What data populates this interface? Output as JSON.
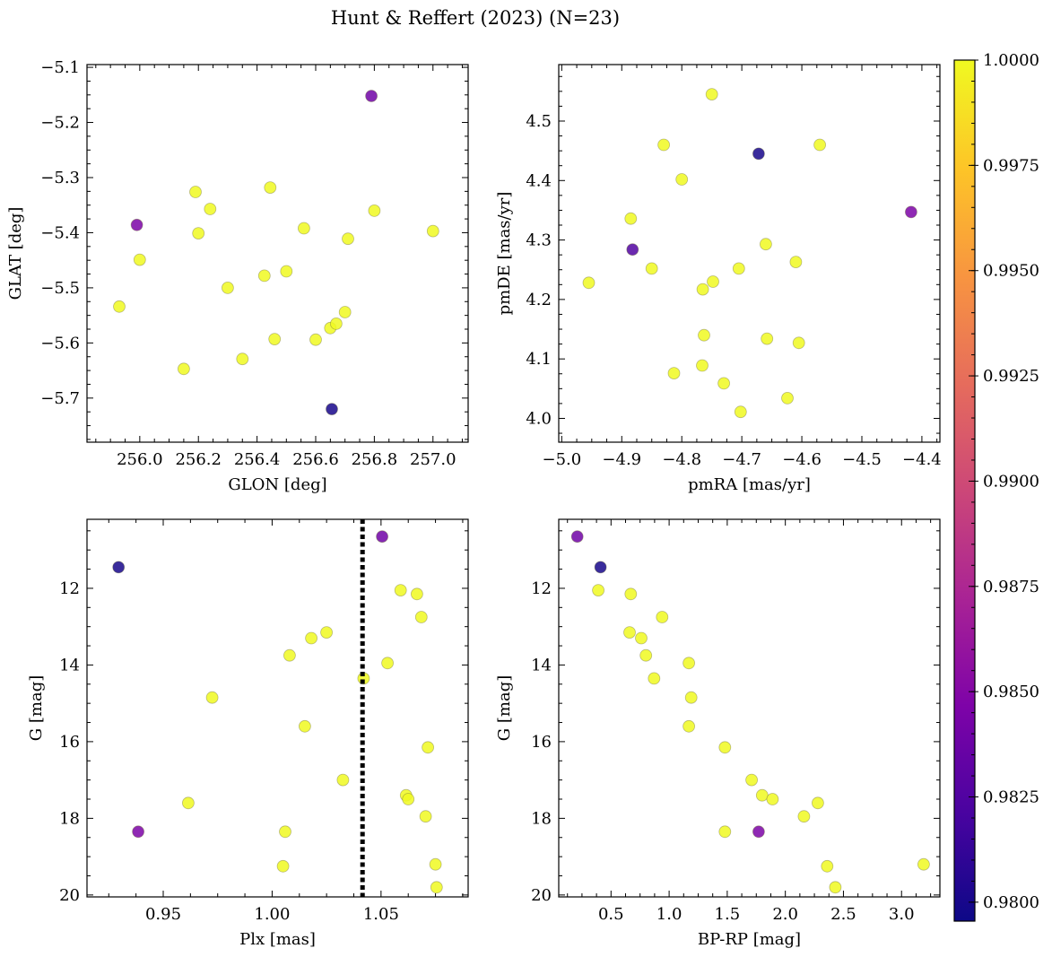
{
  "figure": {
    "title": "Hunt & Reffert (2023) (N=23)"
  },
  "colorbar": {
    "cmap": "plasma",
    "range": [
      0.97955,
      1.0
    ],
    "ticks": [
      0.98,
      0.9825,
      0.985,
      0.9875,
      0.99,
      0.9925,
      0.995,
      0.9975,
      1.0
    ],
    "tick_labels": [
      "0.9800",
      "0.9825",
      "0.9850",
      "0.9875",
      "0.9900",
      "0.9925",
      "0.9950",
      "0.9975",
      "1.0000"
    ]
  },
  "chart_data": [
    {
      "type": "scatter",
      "panel": "top-left",
      "xlabel": "GLON [deg]",
      "ylabel": "GLAT [deg]",
      "xlim": [
        255.82,
        257.12
      ],
      "ylim": [
        -5.78,
        -5.095
      ],
      "yinvert": false,
      "xticks": [
        256.0,
        256.2,
        256.4,
        256.6,
        256.8,
        257.0
      ],
      "xtick_labels": [
        "256.0",
        "256.2",
        "256.4",
        "256.6",
        "256.8",
        "257.0"
      ],
      "yticks": [
        -5.7,
        -5.6,
        -5.5,
        -5.4,
        -5.3,
        -5.2,
        -5.1
      ],
      "ytick_labels": [
        "−5.7",
        "−5.6",
        "−5.5",
        "−5.4",
        "−5.3",
        "−5.2",
        "−5.1"
      ],
      "points": [
        {
          "x": 256.79,
          "y": -5.152,
          "c": 0.984
        },
        {
          "x": 255.99,
          "y": -5.386,
          "c": 0.9845
        },
        {
          "x": 256.655,
          "y": -5.72,
          "c": 0.98
        },
        {
          "x": 256.0,
          "y": -5.449,
          "c": 1.0
        },
        {
          "x": 255.93,
          "y": -5.534,
          "c": 1.0
        },
        {
          "x": 256.19,
          "y": -5.326,
          "c": 1.0
        },
        {
          "x": 256.24,
          "y": -5.357,
          "c": 1.0
        },
        {
          "x": 256.2,
          "y": -5.401,
          "c": 1.0
        },
        {
          "x": 256.3,
          "y": -5.5,
          "c": 1.0
        },
        {
          "x": 256.15,
          "y": -5.647,
          "c": 1.0
        },
        {
          "x": 256.35,
          "y": -5.629,
          "c": 1.0
        },
        {
          "x": 256.445,
          "y": -5.318,
          "c": 1.0
        },
        {
          "x": 256.425,
          "y": -5.478,
          "c": 1.0
        },
        {
          "x": 256.5,
          "y": -5.47,
          "c": 1.0
        },
        {
          "x": 256.46,
          "y": -5.593,
          "c": 1.0
        },
        {
          "x": 256.56,
          "y": -5.392,
          "c": 1.0
        },
        {
          "x": 256.6,
          "y": -5.594,
          "c": 1.0
        },
        {
          "x": 256.65,
          "y": -5.573,
          "c": 1.0
        },
        {
          "x": 256.67,
          "y": -5.565,
          "c": 1.0
        },
        {
          "x": 256.7,
          "y": -5.544,
          "c": 1.0
        },
        {
          "x": 256.71,
          "y": -5.411,
          "c": 1.0
        },
        {
          "x": 256.8,
          "y": -5.36,
          "c": 1.0
        },
        {
          "x": 257.0,
          "y": -5.397,
          "c": 1.0
        }
      ]
    },
    {
      "type": "scatter",
      "panel": "top-right",
      "xlabel": "pmRA [mas/yr]",
      "ylabel": "pmDE [mas/yr]",
      "xlim": [
        -5.005,
        -4.37
      ],
      "ylim": [
        3.96,
        4.595
      ],
      "yinvert": false,
      "xticks": [
        -5.0,
        -4.9,
        -4.8,
        -4.7,
        -4.6,
        -4.5,
        -4.4
      ],
      "xtick_labels": [
        "−5.0",
        "−4.9",
        "−4.8",
        "−4.7",
        "−4.6",
        "−4.5",
        "−4.4"
      ],
      "yticks": [
        4.0,
        4.1,
        4.2,
        4.3,
        4.4,
        4.5
      ],
      "ytick_labels": [
        "4.0",
        "4.1",
        "4.2",
        "4.3",
        "4.4",
        "4.5"
      ],
      "points": [
        {
          "x": -4.672,
          "y": 4.445,
          "c": 0.98
        },
        {
          "x": -4.882,
          "y": 4.284,
          "c": 0.9825
        },
        {
          "x": -4.418,
          "y": 4.347,
          "c": 0.9845
        },
        {
          "x": -4.75,
          "y": 4.545,
          "c": 1.0
        },
        {
          "x": -4.83,
          "y": 4.46,
          "c": 1.0
        },
        {
          "x": -4.57,
          "y": 4.46,
          "c": 1.0
        },
        {
          "x": -4.8,
          "y": 4.402,
          "c": 1.0
        },
        {
          "x": -4.885,
          "y": 4.336,
          "c": 1.0
        },
        {
          "x": -4.66,
          "y": 4.293,
          "c": 1.0
        },
        {
          "x": -4.85,
          "y": 4.252,
          "c": 1.0
        },
        {
          "x": -4.705,
          "y": 4.252,
          "c": 1.0
        },
        {
          "x": -4.61,
          "y": 4.263,
          "c": 1.0
        },
        {
          "x": -4.955,
          "y": 4.228,
          "c": 1.0
        },
        {
          "x": -4.748,
          "y": 4.23,
          "c": 1.0
        },
        {
          "x": -4.765,
          "y": 4.217,
          "c": 1.0
        },
        {
          "x": -4.763,
          "y": 4.14,
          "c": 1.0
        },
        {
          "x": -4.658,
          "y": 4.134,
          "c": 1.0
        },
        {
          "x": -4.605,
          "y": 4.127,
          "c": 1.0
        },
        {
          "x": -4.766,
          "y": 4.089,
          "c": 1.0
        },
        {
          "x": -4.813,
          "y": 4.076,
          "c": 1.0
        },
        {
          "x": -4.73,
          "y": 4.059,
          "c": 1.0
        },
        {
          "x": -4.624,
          "y": 4.034,
          "c": 1.0
        },
        {
          "x": -4.702,
          "y": 4.011,
          "c": 1.0
        }
      ]
    },
    {
      "type": "scatter",
      "panel": "bottom-left",
      "xlabel": "Plx [mas]",
      "ylabel": "G [mag]",
      "xlim": [
        0.915,
        1.09
      ],
      "ylim": [
        20.05,
        10.2
      ],
      "yinvert": true,
      "vline": {
        "x": 1.0415,
        "style": "dotted"
      },
      "xticks": [
        0.95,
        1.0,
        1.05
      ],
      "xtick_labels": [
        "0.95",
        "1.00",
        "1.05"
      ],
      "yticks": [
        12,
        14,
        16,
        18,
        20
      ],
      "ytick_labels": [
        "12",
        "14",
        "16",
        "18",
        "20"
      ],
      "points": [
        {
          "x": 0.9295,
          "y": 11.45,
          "c": 0.98
        },
        {
          "x": 1.0505,
          "y": 10.65,
          "c": 0.984
        },
        {
          "x": 0.9385,
          "y": 18.35,
          "c": 0.9845
        },
        {
          "x": 1.059,
          "y": 12.05,
          "c": 1.0
        },
        {
          "x": 1.0665,
          "y": 12.15,
          "c": 1.0
        },
        {
          "x": 1.0685,
          "y": 12.75,
          "c": 1.0
        },
        {
          "x": 1.025,
          "y": 13.15,
          "c": 1.0
        },
        {
          "x": 1.018,
          "y": 13.3,
          "c": 1.0
        },
        {
          "x": 1.008,
          "y": 13.75,
          "c": 1.0
        },
        {
          "x": 1.053,
          "y": 13.95,
          "c": 1.0
        },
        {
          "x": 1.042,
          "y": 14.35,
          "c": 1.0
        },
        {
          "x": 0.9725,
          "y": 14.85,
          "c": 1.0
        },
        {
          "x": 1.015,
          "y": 15.6,
          "c": 1.0
        },
        {
          "x": 1.0715,
          "y": 16.15,
          "c": 1.0
        },
        {
          "x": 1.0325,
          "y": 17.0,
          "c": 1.0
        },
        {
          "x": 1.0615,
          "y": 17.4,
          "c": 1.0
        },
        {
          "x": 1.0625,
          "y": 17.5,
          "c": 1.0
        },
        {
          "x": 0.9615,
          "y": 17.6,
          "c": 1.0
        },
        {
          "x": 1.0705,
          "y": 17.95,
          "c": 1.0
        },
        {
          "x": 1.006,
          "y": 18.35,
          "c": 1.0
        },
        {
          "x": 1.005,
          "y": 19.25,
          "c": 1.0
        },
        {
          "x": 1.075,
          "y": 19.2,
          "c": 1.0
        },
        {
          "x": 1.0755,
          "y": 19.8,
          "c": 1.0
        }
      ]
    },
    {
      "type": "scatter",
      "panel": "bottom-right",
      "xlabel": "BP-RP [mag]",
      "ylabel": "G [mag]",
      "xlim": [
        0.05,
        3.33
      ],
      "ylim": [
        20.05,
        10.2
      ],
      "yinvert": true,
      "xticks": [
        0.5,
        1.0,
        1.5,
        2.0,
        2.5,
        3.0
      ],
      "xtick_labels": [
        "0.5",
        "1.0",
        "1.5",
        "2.0",
        "2.5",
        "3.0"
      ],
      "yticks": [
        12,
        14,
        16,
        18,
        20
      ],
      "ytick_labels": [
        "12",
        "14",
        "16",
        "18",
        "20"
      ],
      "points": [
        {
          "x": 0.21,
          "y": 10.65,
          "c": 0.984
        },
        {
          "x": 0.41,
          "y": 11.45,
          "c": 0.98
        },
        {
          "x": 1.77,
          "y": 18.35,
          "c": 0.9845
        },
        {
          "x": 0.39,
          "y": 12.05,
          "c": 1.0
        },
        {
          "x": 0.67,
          "y": 12.15,
          "c": 1.0
        },
        {
          "x": 0.94,
          "y": 12.75,
          "c": 1.0
        },
        {
          "x": 0.66,
          "y": 13.15,
          "c": 1.0
        },
        {
          "x": 0.76,
          "y": 13.3,
          "c": 1.0
        },
        {
          "x": 0.8,
          "y": 13.75,
          "c": 1.0
        },
        {
          "x": 1.17,
          "y": 13.95,
          "c": 1.0
        },
        {
          "x": 0.87,
          "y": 14.35,
          "c": 1.0
        },
        {
          "x": 1.19,
          "y": 14.85,
          "c": 1.0
        },
        {
          "x": 1.17,
          "y": 15.6,
          "c": 1.0
        },
        {
          "x": 1.48,
          "y": 16.15,
          "c": 1.0
        },
        {
          "x": 1.71,
          "y": 17.0,
          "c": 1.0
        },
        {
          "x": 1.8,
          "y": 17.4,
          "c": 1.0
        },
        {
          "x": 1.89,
          "y": 17.5,
          "c": 1.0
        },
        {
          "x": 2.28,
          "y": 17.6,
          "c": 1.0
        },
        {
          "x": 2.16,
          "y": 17.95,
          "c": 1.0
        },
        {
          "x": 1.48,
          "y": 18.35,
          "c": 1.0
        },
        {
          "x": 2.36,
          "y": 19.25,
          "c": 1.0
        },
        {
          "x": 3.19,
          "y": 19.2,
          "c": 1.0
        },
        {
          "x": 2.43,
          "y": 19.8,
          "c": 1.0
        }
      ]
    }
  ]
}
